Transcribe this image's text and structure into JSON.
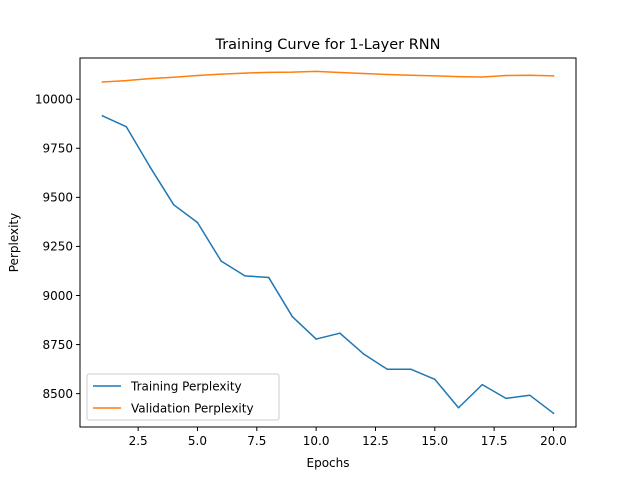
{
  "chart_data": {
    "type": "line",
    "title": "Training Curve for 1-Layer RNN",
    "xlabel": "Epochs",
    "ylabel": "Perplexity",
    "xlim": [
      0.05,
      20.95
    ],
    "ylim": [
      8330,
      10210
    ],
    "xticks": [
      2.5,
      5.0,
      7.5,
      10.0,
      12.5,
      15.0,
      17.5,
      20.0
    ],
    "xtick_labels": [
      "2.5",
      "5.0",
      "7.5",
      "10.0",
      "12.5",
      "15.0",
      "17.5",
      "20.0"
    ],
    "yticks": [
      8500,
      8750,
      9000,
      9250,
      9500,
      9750,
      10000
    ],
    "ytick_labels": [
      "8500",
      "8750",
      "9000",
      "9250",
      "9500",
      "9750",
      "10000"
    ],
    "grid": false,
    "legend_position": "lower-left",
    "x": [
      1,
      2,
      3,
      4,
      5,
      6,
      7,
      8,
      9,
      10,
      11,
      12,
      13,
      14,
      15,
      16,
      17,
      18,
      19,
      20
    ],
    "series": [
      {
        "name": "Training Perplexity",
        "color": "#1f77b4",
        "values": [
          9915,
          9860,
          9655,
          9462,
          9372,
          9175,
          9100,
          9092,
          8892,
          8778,
          8808,
          8702,
          8624,
          8624,
          8573,
          8428,
          8546,
          8476,
          8492,
          8400
        ]
      },
      {
        "name": "Validation Perplexity",
        "color": "#ff7f0e",
        "values": [
          10088,
          10095,
          10105,
          10112,
          10121,
          10128,
          10133,
          10137,
          10138,
          10142,
          10136,
          10131,
          10126,
          10122,
          10119,
          10115,
          10113,
          10121,
          10122,
          10119
        ]
      }
    ]
  }
}
